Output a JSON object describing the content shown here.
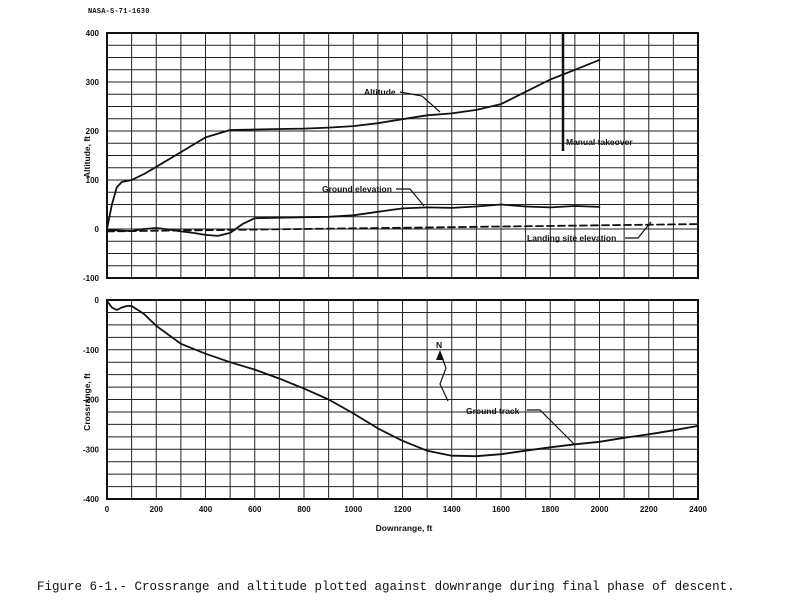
{
  "document_id": "NASA-S-71-1630",
  "caption": "Figure 6-1.- Crossrange and altitude plotted against downrange during final phase of descent.",
  "chart_data": [
    {
      "type": "line",
      "ylabel": "Altitude, ft",
      "xlim": [
        0,
        2400
      ],
      "ylim": [
        -100,
        400
      ],
      "y_ticks": [
        "400",
        "300",
        "200",
        "100",
        "0",
        "-100"
      ],
      "grid": true,
      "series": [
        {
          "name": "Altitude",
          "style": "solid",
          "x": [
            0,
            20,
            40,
            60,
            100,
            150,
            200,
            300,
            400,
            500,
            600,
            700,
            800,
            900,
            1000,
            1100,
            1200,
            1300,
            1400,
            1500,
            1600,
            1700,
            1800,
            1900,
            2000
          ],
          "y": [
            0,
            50,
            85,
            96,
            100,
            112,
            127,
            157,
            187,
            202,
            203,
            204,
            205,
            207,
            210,
            216,
            224,
            232,
            236,
            243,
            255,
            280,
            305,
            325,
            345
          ]
        },
        {
          "name": "Ground elevation",
          "style": "solid",
          "x": [
            0,
            50,
            100,
            150,
            200,
            250,
            300,
            350,
            400,
            450,
            500,
            550,
            600,
            700,
            800,
            900,
            1000,
            1100,
            1200,
            1300,
            1400,
            1500,
            1600,
            1700,
            1800,
            1900,
            2000
          ],
          "y": [
            -2,
            -3,
            -4,
            0,
            2,
            -1,
            -5,
            -8,
            -12,
            -14,
            -8,
            10,
            22,
            23,
            24,
            25,
            28,
            35,
            42,
            44,
            43,
            46,
            50,
            46,
            44,
            47,
            45
          ]
        },
        {
          "name": "Landing site elevation",
          "style": "dashed",
          "x": [
            0,
            2400
          ],
          "y": [
            -5,
            10
          ]
        }
      ],
      "annotations": [
        {
          "text": "Altitude",
          "points_to_x": 1370
        },
        {
          "text": "Ground elevation",
          "points_to_x": 1290
        },
        {
          "text": "Manual takeover",
          "at_x": 1850,
          "marker_y_range": [
            160,
            400
          ]
        },
        {
          "text": "Landing site elevation",
          "points_to_x": 2210
        }
      ]
    },
    {
      "type": "line",
      "xlabel": "Downrange, ft",
      "ylabel": "Crossrange, ft",
      "xlim": [
        0,
        2400
      ],
      "ylim": [
        -400,
        0
      ],
      "x_ticks": [
        "0",
        "200",
        "400",
        "600",
        "800",
        "1000",
        "1200",
        "1400",
        "1600",
        "1800",
        "2000",
        "2200",
        "2400"
      ],
      "y_ticks": [
        "0",
        "-100",
        "-200",
        "-300",
        "-400"
      ],
      "grid": true,
      "series": [
        {
          "name": "Ground track",
          "style": "solid",
          "x": [
            0,
            20,
            40,
            60,
            80,
            100,
            150,
            200,
            300,
            400,
            500,
            600,
            700,
            800,
            900,
            1000,
            1100,
            1200,
            1300,
            1400,
            1500,
            1600,
            1700,
            1800,
            1900,
            2000,
            2100,
            2200,
            2300,
            2400
          ],
          "y": [
            -2,
            -15,
            -20,
            -15,
            -12,
            -12,
            -28,
            -52,
            -88,
            -108,
            -125,
            -140,
            -158,
            -178,
            -200,
            -228,
            -258,
            -283,
            -303,
            -313,
            -314,
            -310,
            -303,
            -296,
            -290,
            -285,
            -277,
            -270,
            -262,
            -253
          ]
        }
      ],
      "annotations": [
        {
          "text": "N",
          "kind": "north-arrow"
        },
        {
          "text": "Ground track",
          "points_to_x": 1880
        }
      ]
    }
  ]
}
